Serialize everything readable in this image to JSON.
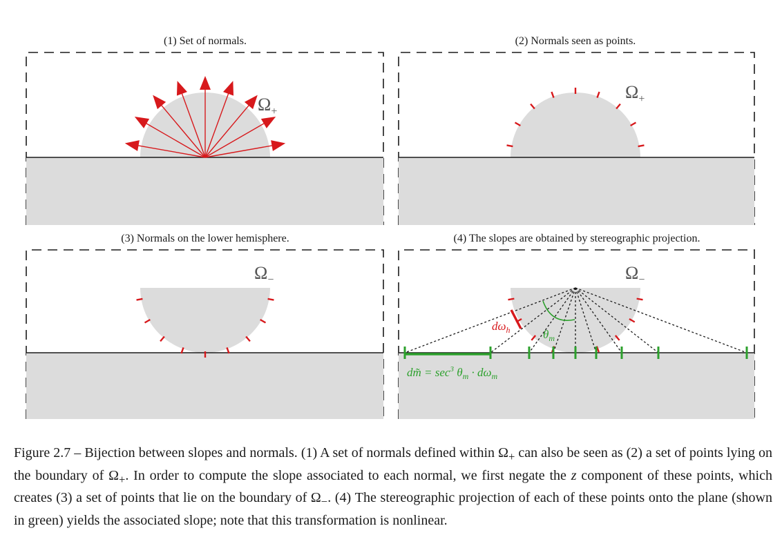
{
  "panels": [
    {
      "title": "(1) Set of normals.",
      "omega": "Ω",
      "omega_sub": "+"
    },
    {
      "title": "(2) Normals seen as points.",
      "omega": "Ω",
      "omega_sub": "+"
    },
    {
      "title": "(3) Normals on the lower hemisphere.",
      "omega": "Ω",
      "omega_sub": "−"
    },
    {
      "title": "(4) The slopes are obtained by stereographic projection.",
      "omega": "Ω",
      "omega_sub": "−"
    }
  ],
  "labels": {
    "d_omega_h": "dω",
    "d_omega_h_sub": "h",
    "theta_m": "θ",
    "theta_m_sub": "m",
    "d_m_formula_lhs": "dm̃ = sec",
    "d_m_formula_exp": "3",
    "d_m_formula_rhs": " θ",
    "d_m_formula_rhs_sub": "m",
    "d_m_formula_tail": " · dω",
    "d_m_formula_tail_sub": "m"
  },
  "colors": {
    "normal_red": "#d7191c",
    "projection_green": "#2ca02c",
    "surface_gray": "#dcdcdc",
    "outline": "#1a1a1a"
  },
  "caption": {
    "p1": "Figure 2.7 – Bijection between slopes and normals. (1) A set of normals defined within Ω",
    "s1": "+",
    "p2": " can also be seen as (2) a set of points lying on the boundary of Ω",
    "s2": "+",
    "p3": ". In order to compute the slope associated to each normal, we first negate the ",
    "z": "z",
    "p4": " component of these points, which creates (3) a set of points that lie on the boundary of Ω",
    "s3": "−",
    "p5": ". (4) The stereographic projection of each of these points onto the plane (shown in green) yields the associated slope; note that this transformation is nonlinear."
  }
}
